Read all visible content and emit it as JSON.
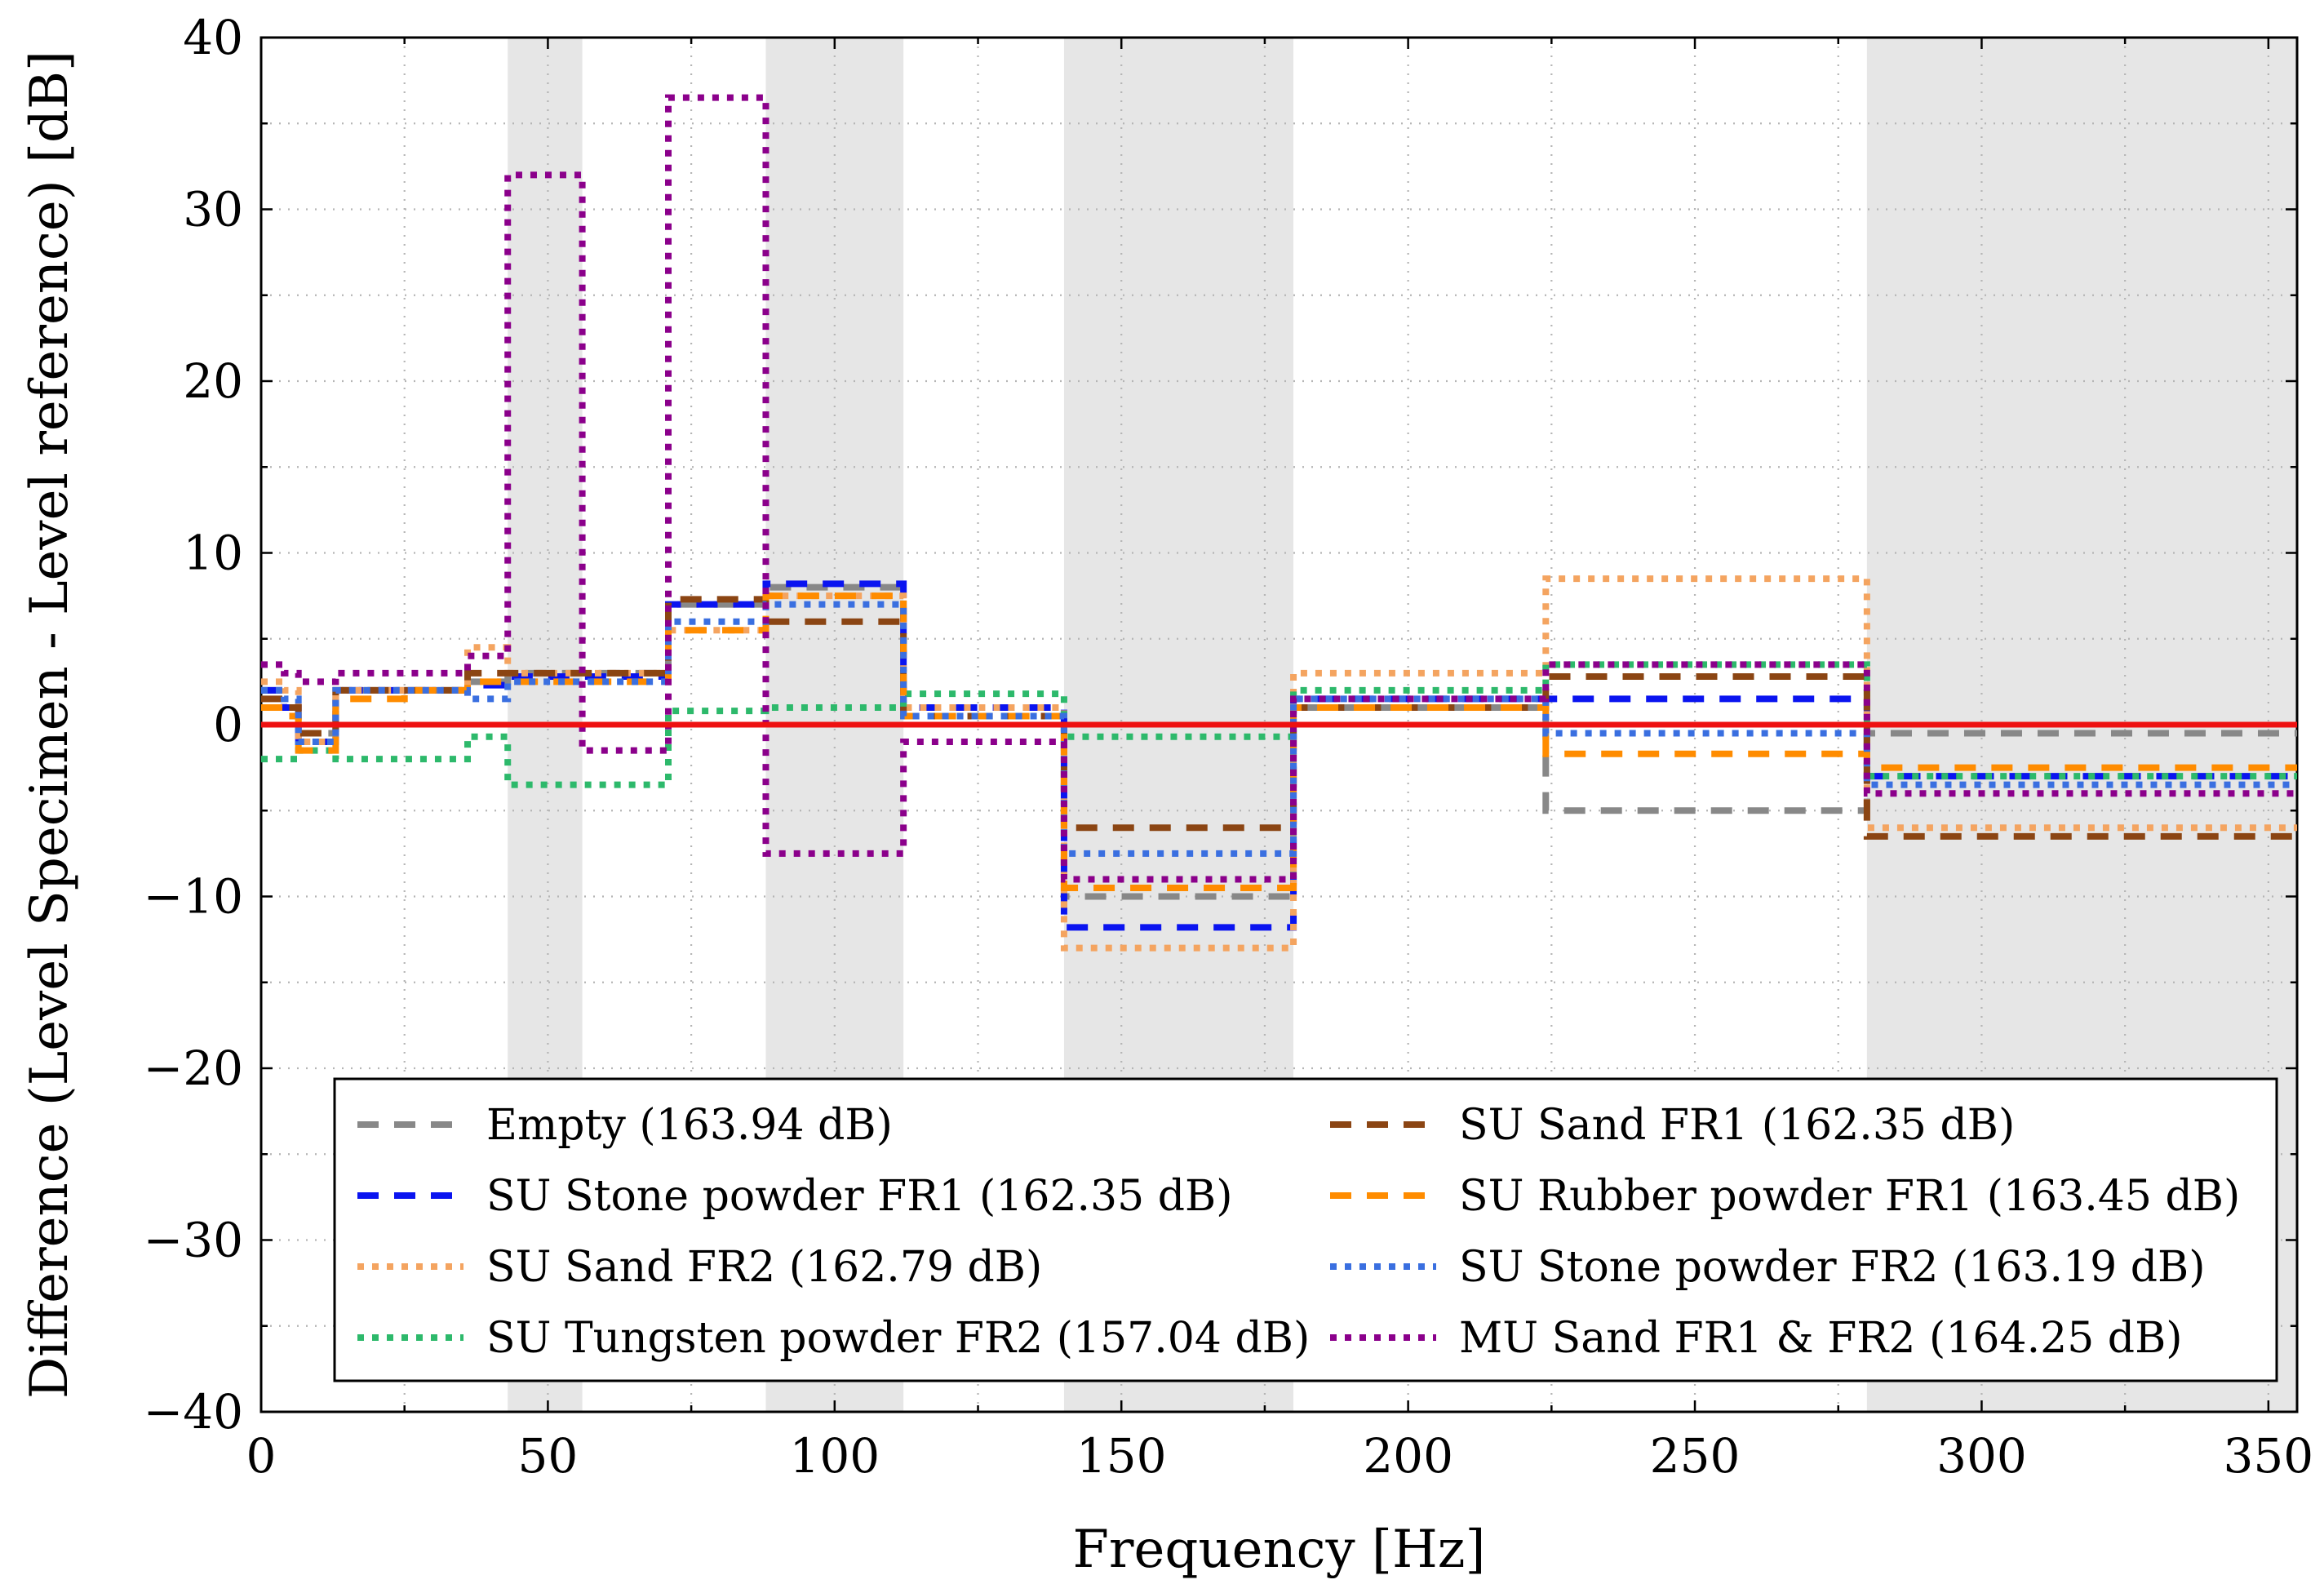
{
  "chart_data": {
    "type": "line",
    "title": "",
    "xlabel": "Frequency [Hz]",
    "ylabel": "Difference (Level Specimen - Level reference) [dB]",
    "xlim": [
      0,
      355
    ],
    "ylim": [
      -40,
      40
    ],
    "xticks": [
      0,
      50,
      100,
      150,
      200,
      250,
      300,
      350
    ],
    "yticks": [
      -40,
      -30,
      -20,
      -10,
      0,
      10,
      20,
      30,
      40
    ],
    "xtick_labels": [
      "0",
      "50",
      "100",
      "150",
      "200",
      "250",
      "300",
      "350"
    ],
    "ytick_labels": [
      "−40",
      "−30",
      "−20",
      "−10",
      "0",
      "10",
      "20",
      "30",
      "40"
    ],
    "grid": true,
    "legend_position": "bottom",
    "shaded_bands": [
      [
        43,
        56
      ],
      [
        88,
        112
      ],
      [
        140,
        180
      ],
      [
        280,
        355
      ]
    ],
    "reference_line": {
      "y": 0,
      "color": "#ee1111"
    },
    "steps": [
      [
        0,
        4,
        6.5,
        13,
        25,
        36,
        43,
        56,
        71,
        88,
        112,
        125,
        140,
        180,
        224,
        280,
        355
      ]
    ],
    "series": [
      {
        "name": "Empty (163.94 dB)",
        "color": "#888888",
        "style": "dashed",
        "values": [
          2,
          1,
          -0.5,
          2,
          2,
          2.5,
          3,
          3,
          7,
          8,
          0.5,
          0.5,
          -10,
          1,
          -5,
          -0.5
        ]
      },
      {
        "name": "SU Stone powder FR1 (162.35 dB)",
        "color": "#0a14f0",
        "style": "dashed",
        "values": [
          2,
          1,
          -1,
          2,
          2,
          2.3,
          2.8,
          2.8,
          7,
          8.2,
          1,
          1,
          -11.8,
          1.5,
          1.5,
          -3
        ]
      },
      {
        "name": "SU Sand FR2 (162.79 dB)",
        "color": "#f4a460",
        "style": "dotted",
        "values": [
          2.5,
          2,
          -1,
          2,
          2,
          4.5,
          3,
          3,
          5.5,
          7.5,
          1,
          1,
          -13,
          3,
          8.5,
          -6
        ]
      },
      {
        "name": "SU Tungsten powder FR2 (157.04 dB)",
        "color": "#2db96b",
        "style": "dotted",
        "values": [
          -2,
          -2,
          -1.5,
          -2,
          -2,
          -0.7,
          -3.5,
          -3.5,
          0.8,
          1,
          1.8,
          1.8,
          -0.7,
          2,
          3.5,
          -3
        ]
      },
      {
        "name": "SU Sand FR1 (162.35 dB)",
        "color": "#8b4513",
        "style": "dashed",
        "values": [
          1.5,
          1,
          -0.5,
          2,
          2,
          3,
          3,
          3,
          7.3,
          6,
          0.5,
          0.5,
          -6,
          1,
          2.8,
          -6.5
        ]
      },
      {
        "name": "SU Rubber powder FR1 (163.45 dB)",
        "color": "#ff8c00",
        "style": "dashed",
        "values": [
          1,
          0.5,
          -1.5,
          1.5,
          2,
          2.5,
          2.5,
          2.5,
          5.5,
          7.5,
          0.5,
          0.5,
          -9.5,
          1,
          -1.7,
          -2.5
        ]
      },
      {
        "name": "SU Stone powder FR2 (163.19 dB)",
        "color": "#3a6fe0",
        "style": "dotted",
        "values": [
          2,
          1.5,
          -1,
          2,
          2,
          1.5,
          2.5,
          2.5,
          6,
          7,
          0.5,
          0.5,
          -7.5,
          1.5,
          -0.5,
          -3.5
        ]
      },
      {
        "name": "MU Sand FR1 & FR2 (164.25 dB)",
        "color": "#8b008b",
        "style": "dotted",
        "values": [
          3.5,
          3,
          2.5,
          3,
          3,
          4,
          32,
          -1.5,
          36.5,
          -7.5,
          -1,
          -1,
          -9,
          1.5,
          3.5,
          -4
        ]
      }
    ]
  }
}
